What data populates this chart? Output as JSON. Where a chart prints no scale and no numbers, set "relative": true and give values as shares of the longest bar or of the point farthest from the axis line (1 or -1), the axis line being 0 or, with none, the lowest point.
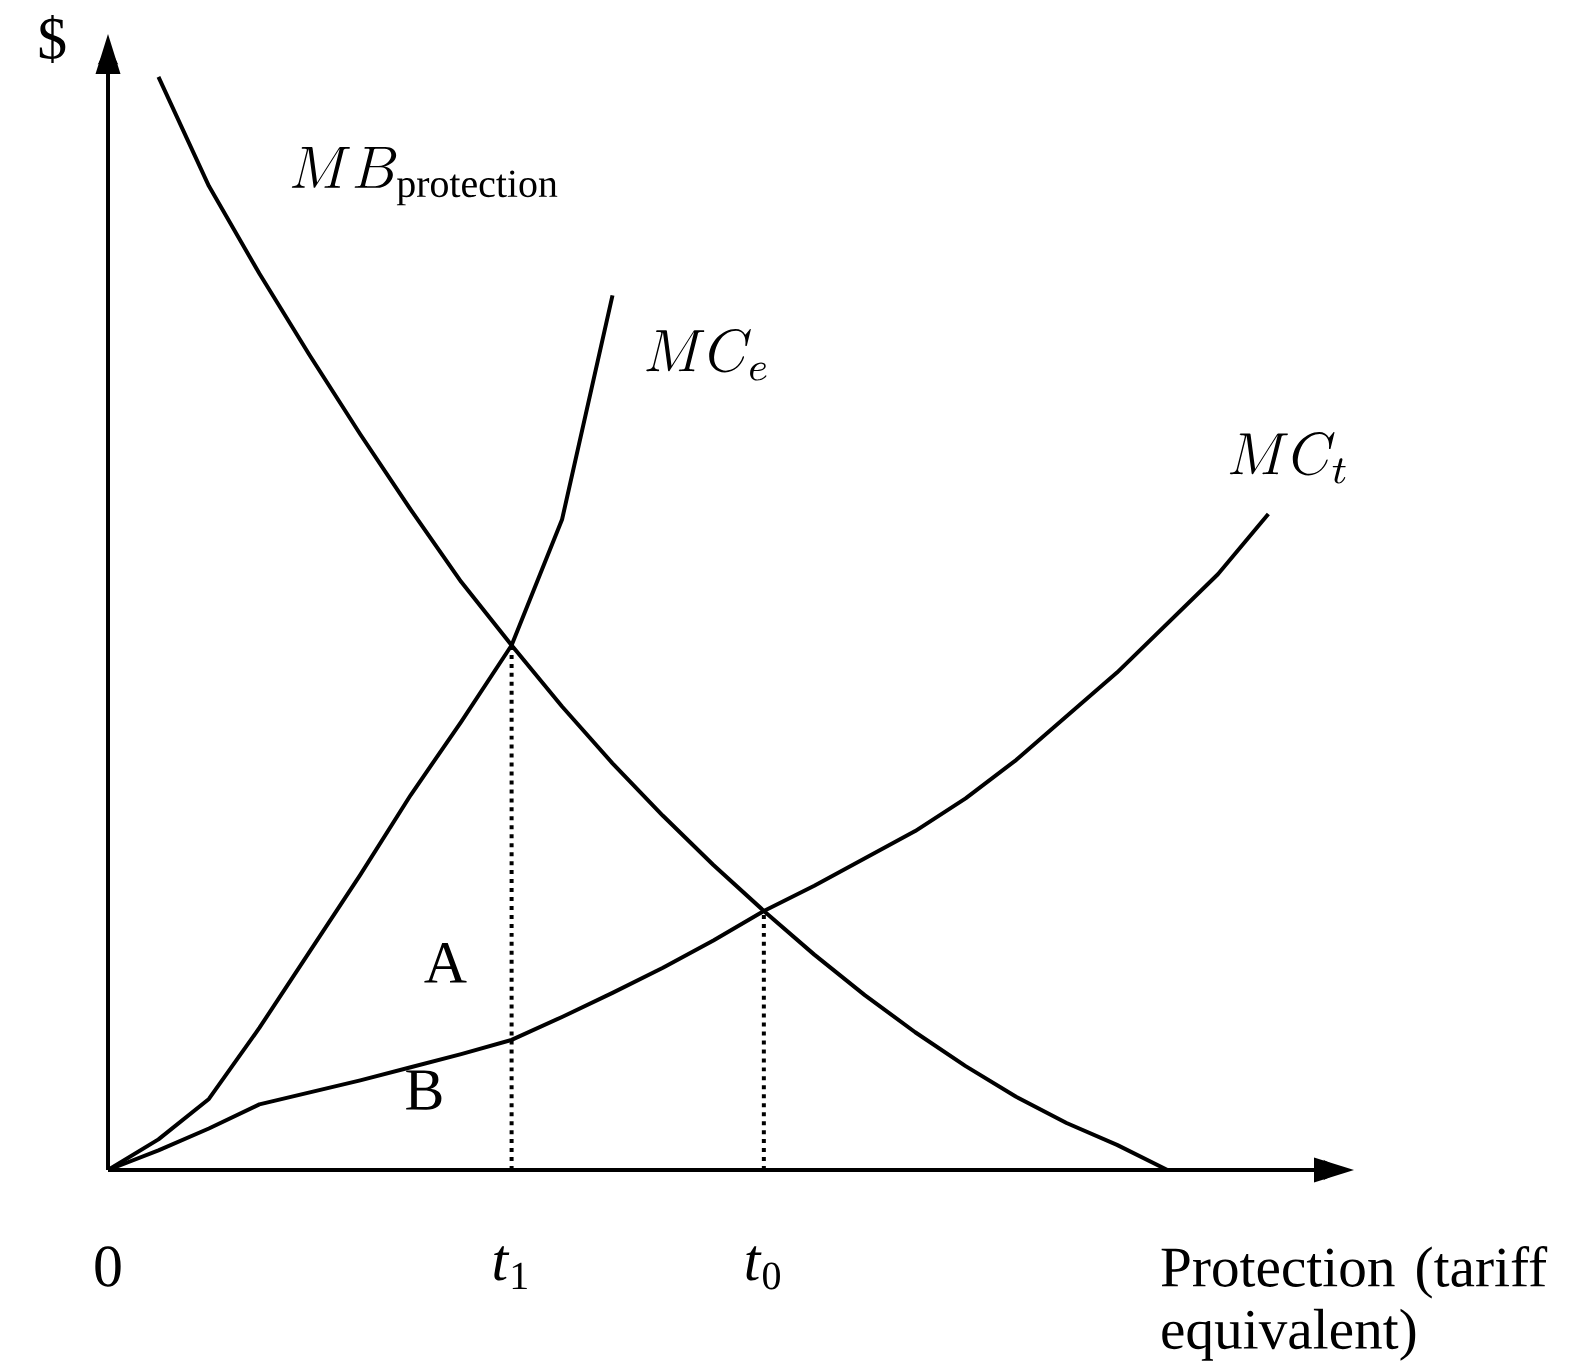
{
  "chart_data": {
    "type": "line",
    "relative": true,
    "ylabel": "$",
    "xlabel": "Protection (tariff equivalent)",
    "line_style": "solid",
    "categories": [
      "0",
      null,
      null,
      null,
      null,
      null,
      null,
      null,
      "*t*$_{1}$",
      null,
      null,
      null,
      null,
      "*t*$_{0}$",
      null,
      null,
      null,
      null,
      null,
      null,
      null,
      null,
      null,
      null
    ],
    "series": [
      {
        "name": "MB_{\\mathrm{protection}}",
        "color": "#000000",
        "values": [
          null,
          1,
          0.9,
          0.82,
          0.745,
          0.673,
          0.604,
          0.538,
          0.48,
          0.424,
          0.372,
          0.324,
          0.279,
          0.237,
          0.197,
          0.16,
          0.126,
          0.095,
          0.067,
          0.043,
          0.023,
          0,
          null,
          null
        ]
      },
      {
        "name": "MC_{e}",
        "color": "#000000",
        "values": [
          0,
          0.028,
          0.065,
          0.13,
          0.2,
          0.27,
          0.343,
          0.41,
          0.48,
          0.595,
          0.8,
          null,
          null,
          null,
          null,
          null,
          null,
          null,
          null,
          null,
          null,
          null,
          null,
          null
        ]
      },
      {
        "name": "MC_{t}",
        "color": "#000000",
        "values": [
          0,
          0.018,
          0.038,
          0.06,
          0.071,
          0.082,
          0.094,
          0.106,
          0.119,
          0.14,
          0.162,
          0.185,
          0.21,
          0.237,
          0.26,
          0.285,
          0.31,
          0.34,
          0.375,
          0.415,
          0.455,
          0.5,
          0.545,
          0.6
        ]
      }
    ],
    "ref_lines": [
      {
        "axis": "x",
        "value": "*t*$_{1}$",
        "color": "#000000",
        "line_style": "dotted"
      },
      {
        "axis": "x",
        "value": "*t*$_{0}$",
        "color": "#000000",
        "line_style": "dotted"
      }
    ],
    "annotations": [
      "A",
      "B"
    ]
  }
}
